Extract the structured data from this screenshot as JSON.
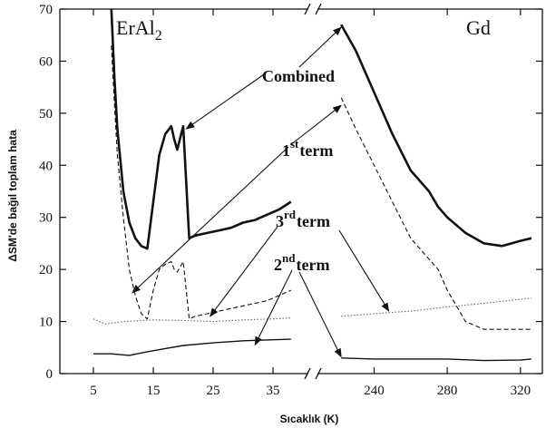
{
  "chart_data": {
    "type": "line",
    "xlabel": "Sıcaklık (K)",
    "ylabel": "ΔSM'de bağıl toplam hata",
    "ylim": [
      0,
      70
    ],
    "y_ticks": [
      0,
      10,
      20,
      30,
      40,
      50,
      60,
      70
    ],
    "grid": false,
    "broken_x_axis": true,
    "panels": [
      {
        "label": "ErAl",
        "label_sub": "2",
        "xlim": [
          0,
          40
        ],
        "x_ticks": [
          5,
          15,
          25,
          35
        ],
        "series": [
          {
            "name": "Combined",
            "style": "solid-thick",
            "color": "#111111",
            "x": [
              8,
              8.5,
              9,
              10,
              11,
              12,
              13,
              14,
              15,
              16,
              17,
              18,
              18.5,
              19,
              20,
              21,
              22,
              24,
              26,
              28,
              30,
              32,
              34,
              36,
              38
            ],
            "y": [
              70,
              57,
              47,
              35,
              29,
              26,
              24.5,
              24,
              33,
              42,
              46,
              47.5,
              45,
              43,
              47.5,
              26,
              26.5,
              27,
              27.5,
              28,
              29,
              29.5,
              30.5,
              31.5,
              33
            ]
          },
          {
            "name": "1st term",
            "style": "dashed",
            "color": "#111111",
            "x": [
              8,
              8.5,
              9,
              10,
              11,
              12,
              13,
              14,
              15,
              16,
              17,
              18,
              18.5,
              19,
              20,
              21,
              22,
              24,
              26,
              28,
              30,
              32,
              34,
              36,
              38
            ],
            "y": [
              63,
              52,
              42,
              30,
              20,
              15,
              11.5,
              10.5,
              16,
              20,
              21,
              21.5,
              20,
              19.5,
              21.5,
              10.5,
              11,
              11.5,
              12,
              12.5,
              13,
              13.5,
              14,
              15,
              16
            ]
          },
          {
            "name": "3rd term",
            "style": "dotted",
            "color": "#666666",
            "x": [
              5,
              7,
              10,
              15,
              20,
              25,
              30,
              35,
              38
            ],
            "y": [
              10.5,
              9.5,
              10,
              10.3,
              10.2,
              10,
              10.3,
              10.5,
              10.7
            ]
          },
          {
            "name": "2nd term",
            "style": "solid-thin",
            "color": "#111111",
            "x": [
              5,
              8,
              11,
              14,
              17,
              20,
              25,
              30,
              35,
              38
            ],
            "y": [
              3.8,
              3.8,
              3.5,
              4.2,
              4.8,
              5.4,
              5.9,
              6.3,
              6.5,
              6.6
            ]
          }
        ]
      },
      {
        "label": "Gd",
        "xlim": [
          212,
          330
        ],
        "x_ticks": [
          240,
          280,
          320
        ],
        "series": [
          {
            "name": "Combined",
            "style": "solid-thick",
            "color": "#111111",
            "x": [
              222,
              230,
              240,
              250,
              260,
              270,
              275,
              280,
              290,
              300,
              310,
              320,
              326
            ],
            "y": [
              67,
              62,
              54,
              46,
              39,
              35,
              32,
              30,
              27,
              25,
              24.5,
              25.5,
              26
            ]
          },
          {
            "name": "1st term",
            "style": "dashed",
            "color": "#111111",
            "x": [
              222,
              230,
              240,
              250,
              260,
              270,
              275,
              280,
              290,
              300,
              310,
              320,
              326
            ],
            "y": [
              53,
              47,
              40,
              33,
              26,
              22,
              20,
              16,
              10,
              8.5,
              8.5,
              8.5,
              8.5
            ]
          },
          {
            "name": "3rd term",
            "style": "dotted",
            "color": "#666666",
            "x": [
              222,
              240,
              260,
              280,
              300,
              326
            ],
            "y": [
              11,
              11.5,
              12,
              12.8,
              13.5,
              14.5
            ]
          },
          {
            "name": "2nd term",
            "style": "solid-thin",
            "color": "#111111",
            "x": [
              222,
              240,
              260,
              280,
              300,
              320,
              326
            ],
            "y": [
              3,
              2.8,
              2.8,
              2.8,
              2.5,
              2.6,
              2.8
            ]
          }
        ]
      }
    ],
    "annotations": [
      {
        "name": "ann-combined",
        "text": "Combined",
        "sup": ""
      },
      {
        "name": "ann-first-term",
        "text": "1",
        "sup": "st",
        "tail": "term"
      },
      {
        "name": "ann-third-term",
        "text": "3",
        "sup": "rd",
        "tail": "term"
      },
      {
        "name": "ann-second-term",
        "text": "2",
        "sup": "nd",
        "tail": "term"
      }
    ]
  }
}
